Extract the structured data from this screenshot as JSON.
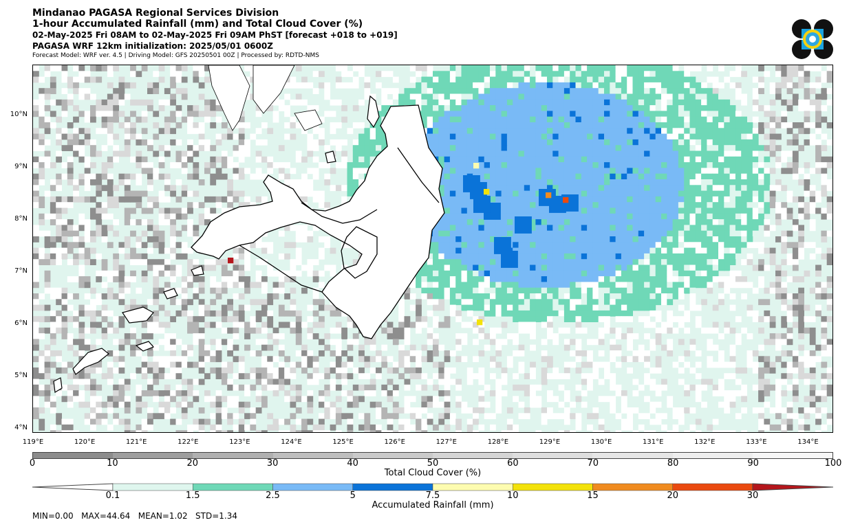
{
  "header": {
    "line1": "Mindanao PAGASA Regional Services Division",
    "line2": "1-hour Accumulated Rainfall (mm) and Total Cloud Cover (%)",
    "line3": "02-May-2025 Fri 08AM to 02-May-2025 Fri 09AM PhST [forecast +018 to +019]",
    "line4": "PAGASA WRF 12km initialization: 2025/05/01 0600Z",
    "line5": "Forecast Model: WRF ver. 4.5 | Driving Model: GFS 20250501 00Z | Processed by: RDTD-NMS"
  },
  "map": {
    "lat_labels": [
      "10°N",
      "9°N",
      "8°N",
      "7°N",
      "6°N",
      "5°N",
      "4°N"
    ],
    "lon_labels": [
      "119°E",
      "120°E",
      "121°E",
      "122°E",
      "123°E",
      "124°E",
      "125°E",
      "126°E",
      "127°E",
      "128°E",
      "129°E",
      "130°E",
      "131°E",
      "132°E",
      "133°E",
      "134°E"
    ],
    "colors": {
      "ocean_tint": "#e0f5ee",
      "cloud_low": "#d9d9d9",
      "cloud_mid": "#b4b4b4",
      "cloud_high": "#8e8e8e"
    }
  },
  "cloud_cover_bar": {
    "title": "Total Cloud Cover (%)",
    "ticks": [
      "0",
      "10",
      "20",
      "30",
      "40",
      "50",
      "60",
      "70",
      "80",
      "90",
      "100"
    ],
    "colors": [
      "#8c8c8c",
      "#9e9e9e",
      "#b0b0b0",
      "#bebebe",
      "#cacaca",
      "#d5d5d5",
      "#dedede",
      "#e6e6e6",
      "#eeeeee",
      "#f6f6f6"
    ]
  },
  "rainfall_bar": {
    "title": "Accumulated Rainfall (mm)",
    "ticks": [
      "0.1",
      "1.5",
      "2.5",
      "5",
      "7.5",
      "10",
      "15",
      "20",
      "30"
    ],
    "colors": [
      "#dff6ee",
      "#6fd8b7",
      "#79baf6",
      "#0a73d8",
      "#fdfcb0",
      "#f3e20a",
      "#f08b1f",
      "#ea4a0f",
      "#b5161c"
    ]
  },
  "stats": "MIN=0.00   MAX=44.64   MEAN=1.02   STD=1.34",
  "logo": {
    "name": "PAGASA"
  }
}
